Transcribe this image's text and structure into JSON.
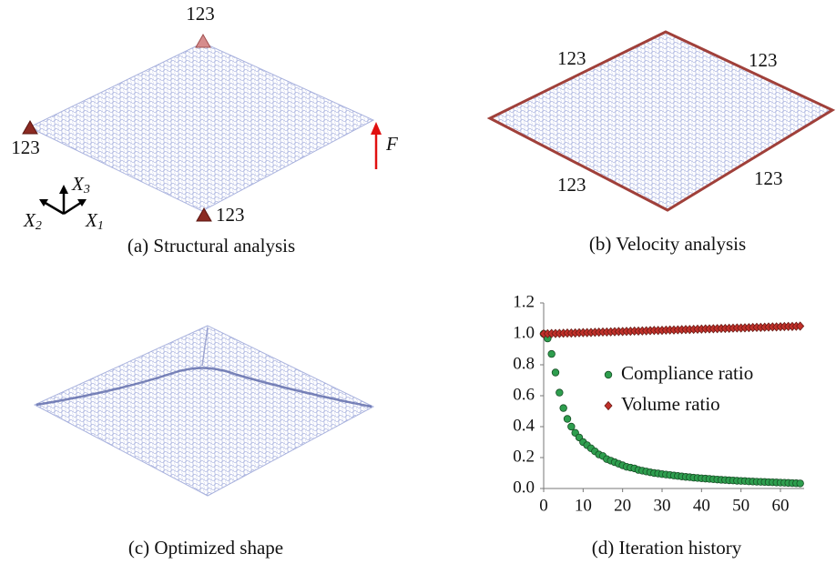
{
  "panels": [
    {
      "caption": "(a) Structural analysis",
      "support_labels": [
        "123",
        "123",
        "123"
      ],
      "force_label": "F",
      "axis_labels": [
        {
          "base": "X",
          "sub": "1"
        },
        {
          "base": "X",
          "sub": "2"
        },
        {
          "base": "X",
          "sub": "3"
        }
      ]
    },
    {
      "caption": "(b) Velocity analysis",
      "edge_labels": [
        "123",
        "123",
        "123",
        "123"
      ]
    },
    {
      "caption": "(c) Optimized shape"
    },
    {
      "caption": "(d) Iteration history"
    }
  ],
  "chart_data": {
    "type": "scatter",
    "x": [
      0,
      1,
      2,
      3,
      4,
      5,
      6,
      7,
      8,
      9,
      10,
      11,
      12,
      13,
      14,
      15,
      16,
      17,
      18,
      19,
      20,
      21,
      22,
      23,
      24,
      25,
      26,
      27,
      28,
      29,
      30,
      31,
      32,
      33,
      34,
      35,
      36,
      37,
      38,
      39,
      40,
      41,
      42,
      43,
      44,
      45,
      46,
      47,
      48,
      49,
      50,
      51,
      52,
      53,
      54,
      55,
      56,
      57,
      58,
      59,
      60,
      61,
      62,
      63,
      64,
      65
    ],
    "series": [
      {
        "name": "Compliance ratio",
        "color": "#2e9e4e",
        "edgecolor": "#174f26",
        "marker": "circle",
        "values": [
          1.0,
          0.97,
          0.87,
          0.75,
          0.62,
          0.52,
          0.45,
          0.4,
          0.36,
          0.33,
          0.3,
          0.28,
          0.26,
          0.24,
          0.22,
          0.21,
          0.19,
          0.18,
          0.17,
          0.16,
          0.15,
          0.14,
          0.135,
          0.13,
          0.12,
          0.115,
          0.11,
          0.105,
          0.1,
          0.097,
          0.093,
          0.09,
          0.087,
          0.084,
          0.081,
          0.078,
          0.075,
          0.073,
          0.07,
          0.068,
          0.066,
          0.064,
          0.062,
          0.06,
          0.058,
          0.056,
          0.055,
          0.053,
          0.052,
          0.05,
          0.049,
          0.048,
          0.046,
          0.045,
          0.044,
          0.043,
          0.042,
          0.041,
          0.04,
          0.039,
          0.038,
          0.037,
          0.036,
          0.035,
          0.034,
          0.033
        ]
      },
      {
        "name": "Volume ratio",
        "color": "#c0302a",
        "edgecolor": "#6b1a14",
        "marker": "diamond",
        "values": [
          1.0,
          1.001,
          1.002,
          1.002,
          1.003,
          1.004,
          1.005,
          1.005,
          1.006,
          1.007,
          1.008,
          1.008,
          1.009,
          1.01,
          1.011,
          1.012,
          1.012,
          1.013,
          1.014,
          1.015,
          1.015,
          1.016,
          1.017,
          1.018,
          1.018,
          1.019,
          1.02,
          1.021,
          1.022,
          1.022,
          1.023,
          1.024,
          1.025,
          1.025,
          1.026,
          1.027,
          1.028,
          1.028,
          1.029,
          1.03,
          1.031,
          1.032,
          1.032,
          1.033,
          1.034,
          1.035,
          1.035,
          1.036,
          1.037,
          1.038,
          1.038,
          1.039,
          1.04,
          1.041,
          1.042,
          1.042,
          1.043,
          1.044,
          1.045,
          1.045,
          1.046,
          1.047,
          1.048,
          1.048,
          1.049,
          1.05
        ]
      }
    ],
    "xlim": [
      0,
      66
    ],
    "xticks": [
      0,
      10,
      20,
      30,
      40,
      50,
      60
    ],
    "ylim": [
      0,
      1.2
    ],
    "yticks": [
      {
        "value": 0,
        "label": "0.0"
      },
      0.2,
      0.4,
      0.6,
      0.8,
      {
        "value": 1,
        "label": "1.0"
      },
      1.2
    ],
    "grid": false,
    "legend": "center-right"
  }
}
